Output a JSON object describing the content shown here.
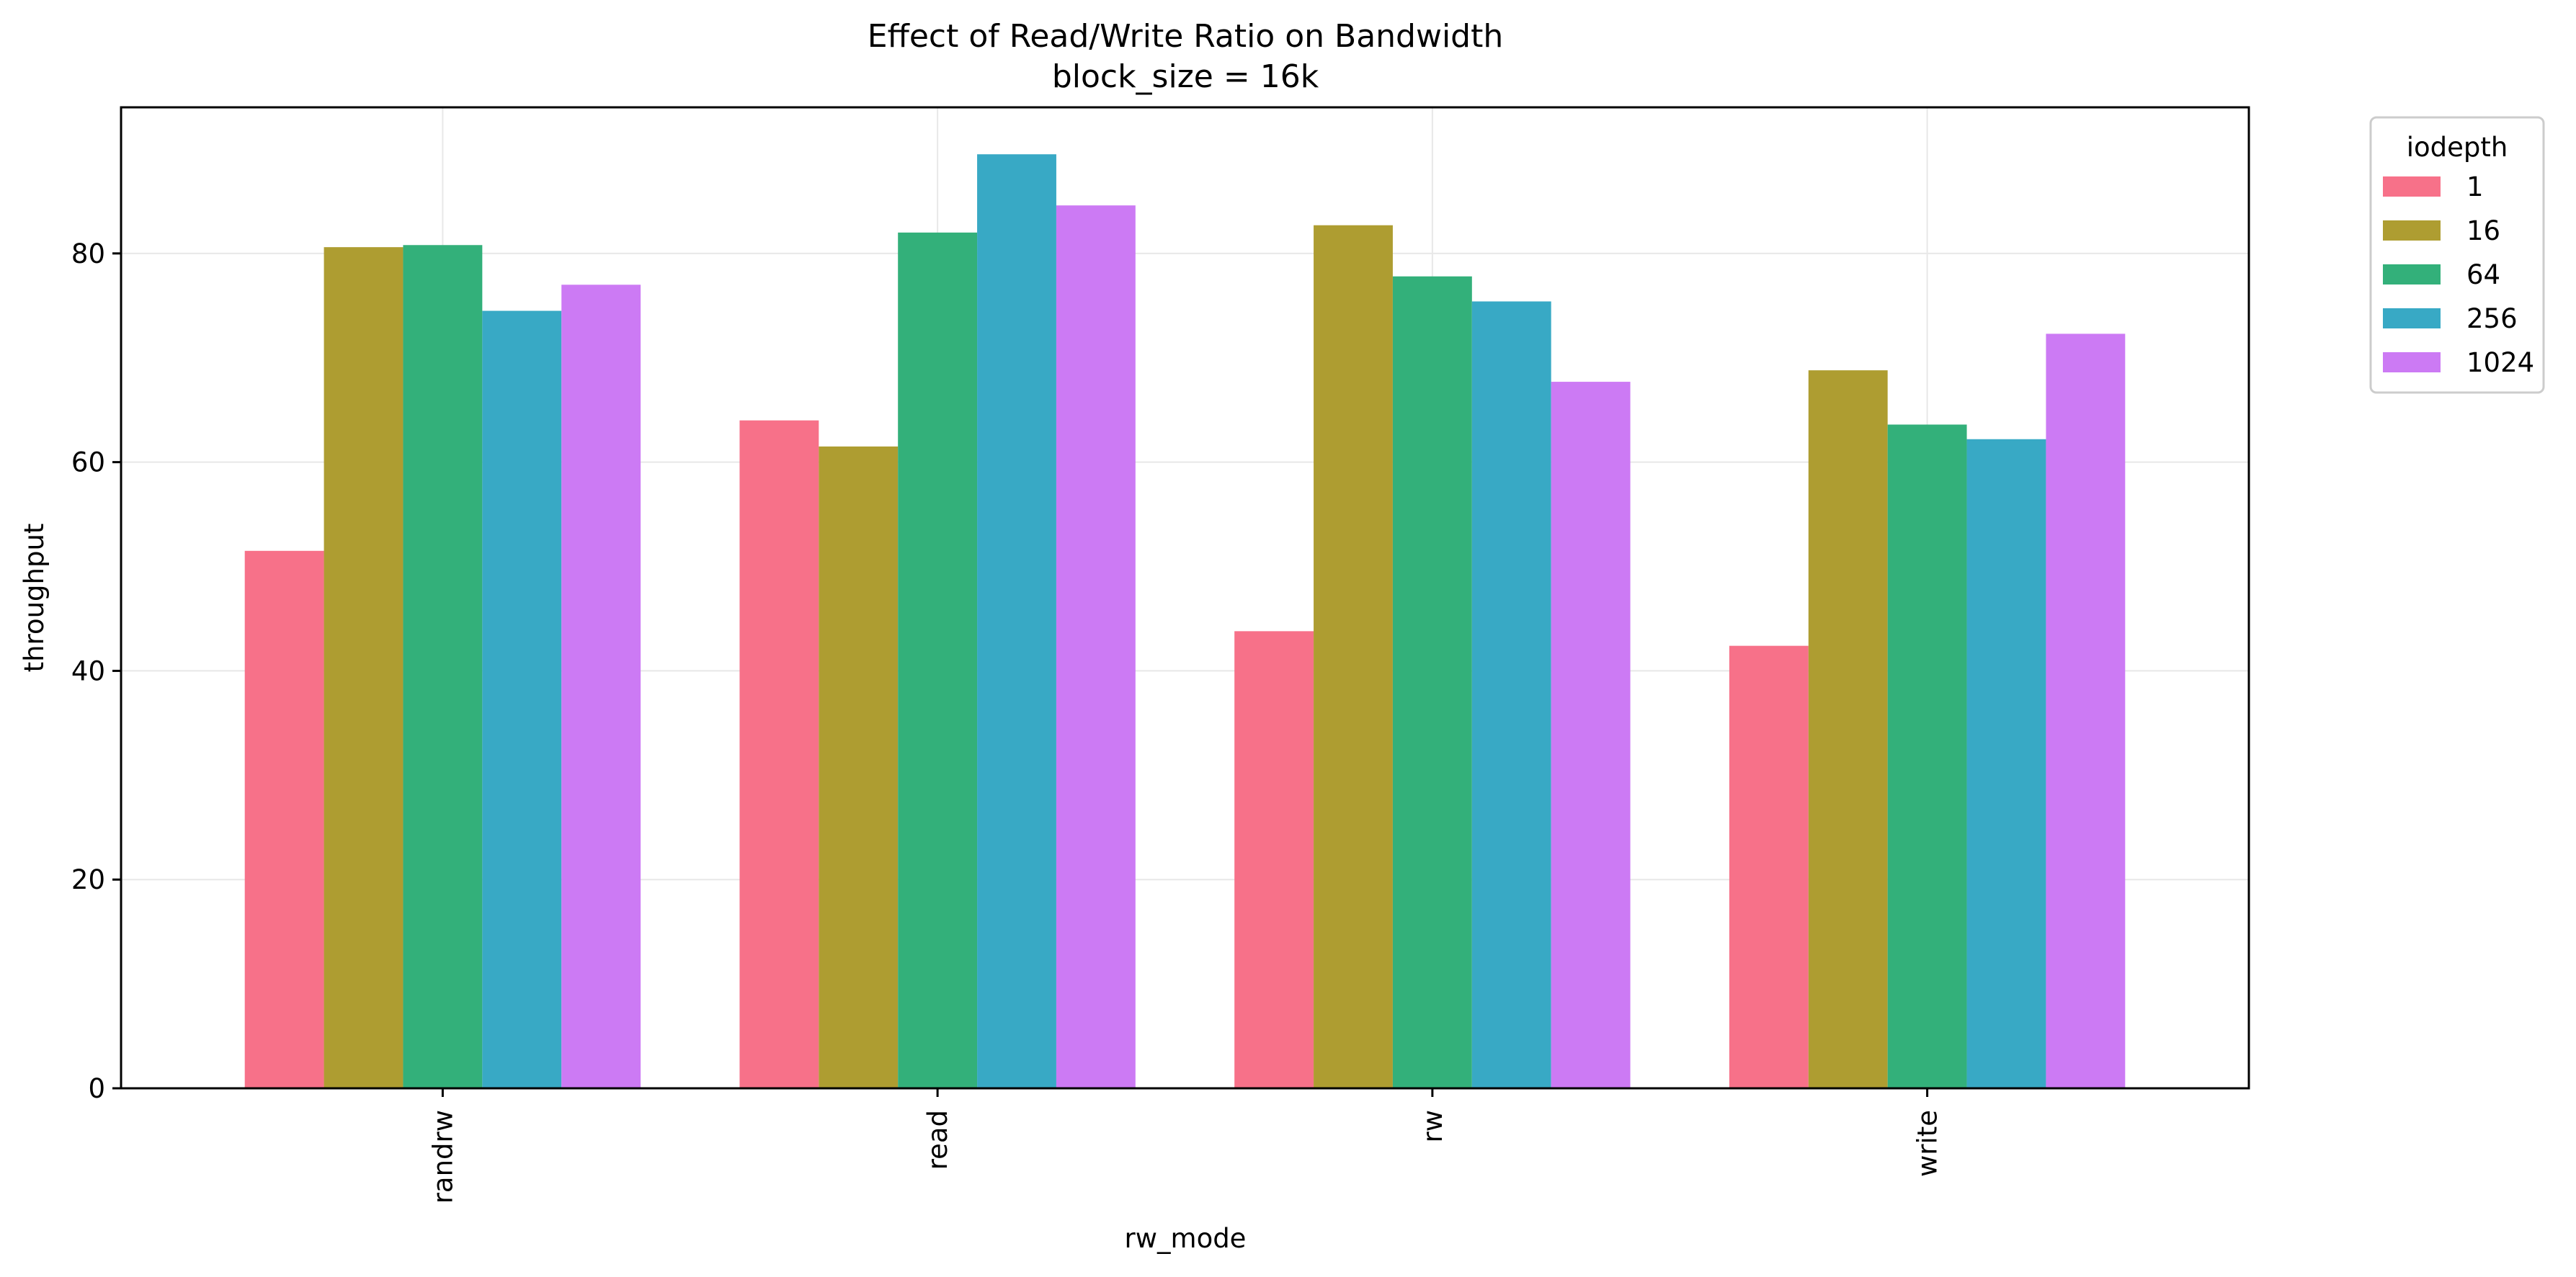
{
  "chart_data": {
    "type": "bar",
    "title": "Effect of Read/Write Ratio on Bandwidth",
    "subtitle": "block_size = 16k",
    "xlabel": "rw_mode",
    "ylabel": "throughput",
    "categories": [
      "randrw",
      "read",
      "rw",
      "write"
    ],
    "ylim": [
      0,
      94
    ],
    "yticks": [
      0,
      20,
      40,
      60,
      80
    ],
    "grid": true,
    "legend": {
      "title": "iodepth",
      "placement": "outside-top-right"
    },
    "series": [
      {
        "name": "1",
        "color": "#f77189",
        "values": [
          51.5,
          64.0,
          43.8,
          42.4
        ]
      },
      {
        "name": "16",
        "color": "#ae9d31",
        "values": [
          80.6,
          61.5,
          82.7,
          68.8
        ]
      },
      {
        "name": "64",
        "color": "#33b07a",
        "values": [
          80.8,
          82.0,
          77.8,
          63.6
        ]
      },
      {
        "name": "256",
        "color": "#38a9c5",
        "values": [
          74.5,
          89.5,
          75.4,
          62.2
        ]
      },
      {
        "name": "1024",
        "color": "#cc7af4",
        "values": [
          77.0,
          84.6,
          67.7,
          72.3
        ]
      }
    ]
  }
}
